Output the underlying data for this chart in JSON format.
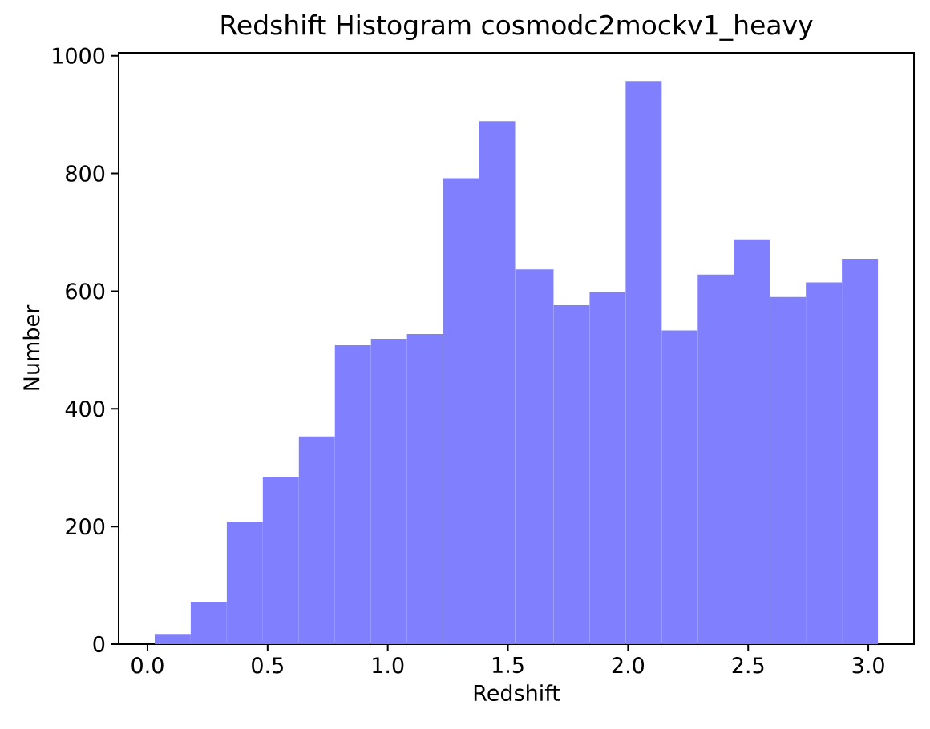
{
  "chart_data": {
    "type": "histogram",
    "title": "Redshift Histogram cosmodc2mockv1_heavy",
    "xlabel": "Redshift",
    "ylabel": "Number",
    "bins": [
      0.03,
      0.18,
      0.33,
      0.48,
      0.63,
      0.78,
      0.93,
      1.08,
      1.23,
      1.38,
      1.53,
      1.69,
      1.84,
      1.99,
      2.14,
      2.29,
      2.44,
      2.59,
      2.74,
      2.89,
      3.04
    ],
    "values": [
      16,
      71,
      207,
      284,
      353,
      508,
      519,
      527,
      792,
      889,
      637,
      576,
      598,
      957,
      533,
      628,
      688,
      590,
      615,
      655
    ],
    "color": "#8080ff",
    "xlim": [
      -0.12,
      3.19
    ],
    "ylim": [
      0,
      1005
    ],
    "xticks": [
      {
        "value": 0,
        "label": "0.0"
      },
      0.5,
      {
        "value": 1,
        "label": "1.0"
      },
      1.5,
      {
        "value": 2,
        "label": "2.0"
      },
      2.5,
      {
        "value": 3,
        "label": "3.0"
      }
    ],
    "yticks": [
      0,
      200,
      400,
      600,
      800,
      1000
    ]
  }
}
